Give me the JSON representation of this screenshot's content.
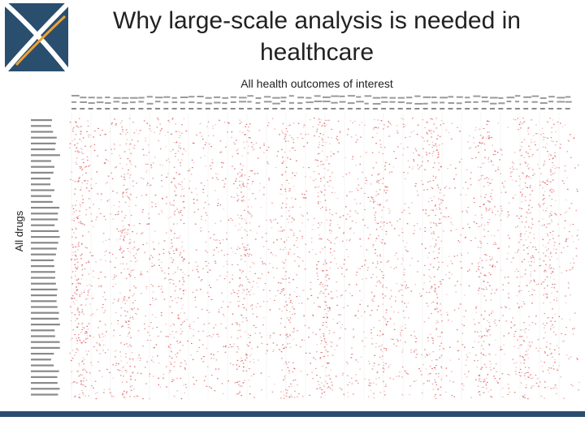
{
  "slide": {
    "title": "Why large-scale analysis is needed in healthcare",
    "subtitle": "All health outcomes of interest",
    "y_axis_label": "All drugs"
  },
  "colors": {
    "logo_navy": "#2a4e6e",
    "logo_orange": "#f0a030",
    "cell_red": "#d84848",
    "footer_bar": "#2a4e6e"
  },
  "icons": {
    "logo": "ohdsi-logo"
  }
}
